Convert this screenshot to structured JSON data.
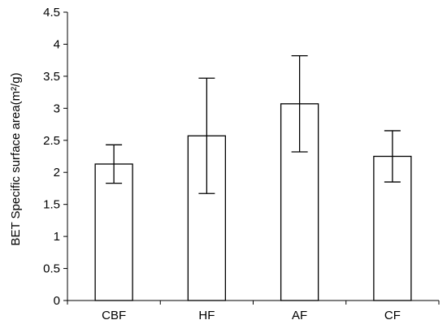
{
  "chart_data": {
    "type": "bar",
    "title": "",
    "xlabel": "",
    "ylabel": "BET Specific surface area(m²/g)",
    "categories": [
      "CBF",
      "HF",
      "AF",
      "CF"
    ],
    "values": [
      2.13,
      2.57,
      3.07,
      2.25
    ],
    "error_low": [
      1.83,
      1.67,
      2.32,
      1.85
    ],
    "error_high": [
      2.43,
      3.47,
      3.82,
      2.65
    ],
    "ylim": [
      0,
      4.5
    ],
    "yticks": [
      "0",
      "0.5",
      "1",
      "1.5",
      "2",
      "2.5",
      "3",
      "3.5",
      "4",
      "4.5"
    ],
    "ytick_values": [
      0,
      0.5,
      1,
      1.5,
      2,
      2.5,
      3,
      3.5,
      4,
      4.5
    ],
    "grid": false,
    "legend": "none",
    "colors": {
      "bar_fill": "#ffffff",
      "bar_stroke": "#000000",
      "axis": "#000000"
    }
  }
}
